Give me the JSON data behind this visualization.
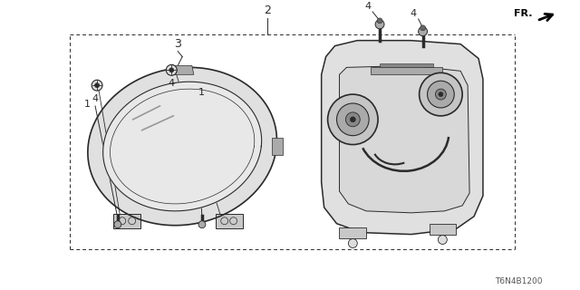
{
  "bg_color": "#ffffff",
  "line_color": "#2a2a2a",
  "fig_width": 6.4,
  "fig_height": 3.2,
  "dpi": 100,
  "diagram_code": "T6N4B1200",
  "fr_label": "FR.",
  "label_2": "2",
  "label_3": "3",
  "label_1": "1",
  "label_4": "4",
  "gray_fill": "#c8c8c8",
  "light_gray": "#e0e0e0",
  "dark_gray": "#888888",
  "mid_gray": "#aaaaaa"
}
